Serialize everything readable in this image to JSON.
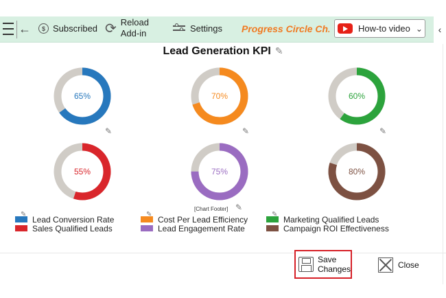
{
  "toolbar": {
    "subscribed_label": "Subscribed",
    "reload_line1": "Reload",
    "reload_line2": "Add-in",
    "settings_label": "Settings",
    "app_title": "Progress Circle Ch...",
    "howto_label": "How-to video",
    "back_glyph": "←",
    "collapse_glyph": "‹",
    "chevron_glyph": "⌄"
  },
  "kpi": {
    "title": "Lead Generation KPI",
    "edit_glyph": "✎",
    "footer_label": "[Chart Footer]",
    "track_color": "#d0ccc6",
    "charts": [
      {
        "name": "Lead Conversion Rate",
        "value": 65,
        "label": "65%",
        "color": "#2778bd"
      },
      {
        "name": "Cost Per Lead Efficiency",
        "value": 70,
        "label": "70%",
        "color": "#f58a1f"
      },
      {
        "name": "Marketing Qualified Leads",
        "value": 60,
        "label": "60%",
        "color": "#2ca33c"
      },
      {
        "name": "Sales Qualified Leads",
        "value": 55,
        "label": "55%",
        "color": "#d9262b"
      },
      {
        "name": "Lead Engagement Rate",
        "value": 75,
        "label": "75%",
        "color": "#9a6cc1"
      },
      {
        "name": "Campaign ROI Effectiveness",
        "value": 80,
        "label": "80%",
        "color": "#7d5142"
      }
    ]
  },
  "actions": {
    "save_line1": "Save",
    "save_line2": "Changes",
    "close_label": "Close"
  }
}
